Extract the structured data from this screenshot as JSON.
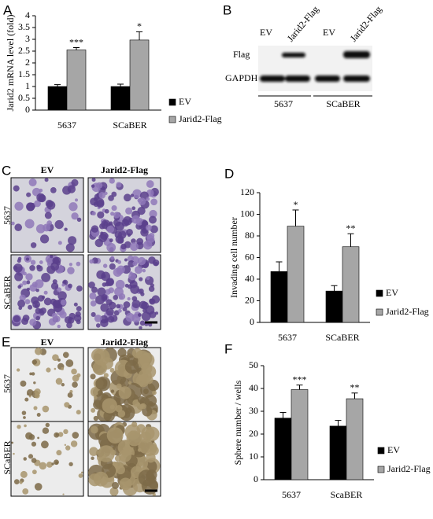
{
  "panel_labels": [
    "A",
    "B",
    "C",
    "D",
    "E",
    "F"
  ],
  "blot": {
    "lanes": [
      "EV",
      "Jarid2-Flag",
      "EV",
      "Jarid2-Flag"
    ],
    "rows": [
      "Flag",
      "GAPDH"
    ],
    "groups": [
      "5637",
      "SCaBER"
    ]
  },
  "invasion_images": {
    "columns": [
      "EV",
      "Jarid2-Flag"
    ],
    "rows": [
      "5637",
      "SCaBER"
    ]
  },
  "sphere_images": {
    "columns": [
      "EV",
      "Jarid2-Flag"
    ],
    "rows": [
      "5637",
      "SCaBER"
    ]
  },
  "chart_data": [
    {
      "type": "bar",
      "y_label": "Jarid2 mRNA level (fold)",
      "categories": [
        "5637",
        "SCaBER"
      ],
      "series": [
        {
          "name": "EV",
          "color": "#000000",
          "values": [
            1,
            1
          ],
          "errors": [
            0.08,
            0.1
          ]
        },
        {
          "name": "Jarid2-Flag",
          "color": "#a6a6a6",
          "values": [
            2.55,
            2.97
          ],
          "errors": [
            0.1,
            0.35
          ]
        }
      ],
      "annotations": [
        "***",
        "*"
      ],
      "ylim": [
        0,
        4
      ],
      "yticks": [
        0,
        0.5,
        1,
        1.5,
        2,
        2.5,
        3,
        3.5,
        4
      ]
    },
    {
      "type": "bar",
      "y_label": "Invading cell number",
      "categories": [
        "5637",
        "SCaBER"
      ],
      "series": [
        {
          "name": "EV",
          "color": "#000000",
          "values": [
            47,
            29
          ],
          "errors": [
            9,
            5
          ]
        },
        {
          "name": "Jarid2-Flag",
          "color": "#a6a6a6",
          "values": [
            89,
            70
          ],
          "errors": [
            15,
            12
          ]
        }
      ],
      "annotations": [
        "*",
        "**"
      ],
      "ylim": [
        0,
        120
      ],
      "yticks": [
        0,
        20,
        40,
        60,
        80,
        100,
        120
      ]
    },
    {
      "type": "bar",
      "y_label": "Sphere number / wells",
      "categories": [
        "5637",
        "ScaBER"
      ],
      "series": [
        {
          "name": "EV",
          "color": "#000000",
          "values": [
            27,
            23.5
          ],
          "errors": [
            2.5,
            2.5
          ]
        },
        {
          "name": "Jarid2-Flag",
          "color": "#a6a6a6",
          "values": [
            39.5,
            35.5
          ],
          "errors": [
            2,
            2.5
          ]
        }
      ],
      "annotations": [
        "***",
        "**"
      ],
      "ylim": [
        0,
        50
      ],
      "yticks": [
        0,
        10,
        20,
        30,
        40,
        50
      ]
    }
  ]
}
